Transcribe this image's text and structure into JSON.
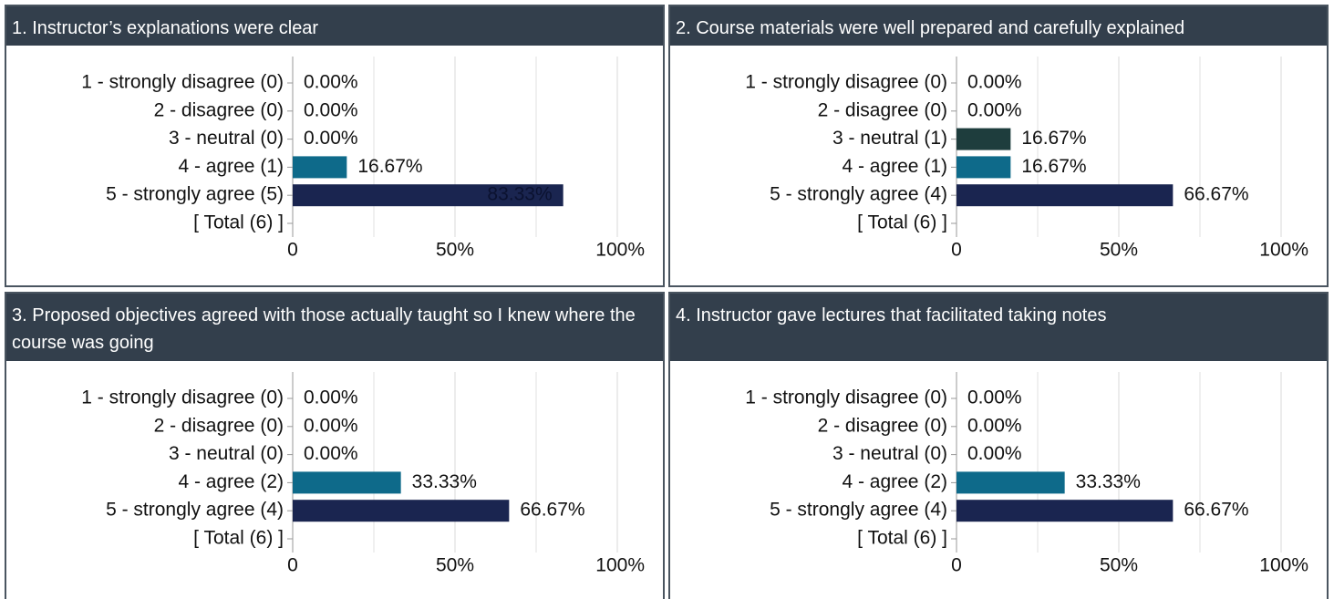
{
  "chart_data": [
    {
      "type": "bar",
      "title": "1. Instructor’s explanations were clear",
      "categories": [
        "1 - strongly disagree (0)",
        "2 - disagree (0)",
        "3 - neutral (0)",
        "4 - agree (1)",
        "5 - strongly agree (5)",
        "[ Total (6) ]"
      ],
      "values": [
        0,
        0,
        0,
        16.67,
        83.33,
        null
      ],
      "value_labels": [
        "0.00%",
        "0.00%",
        "0.00%",
        "16.67%",
        "83.33%",
        null
      ],
      "colors": [
        "#2a4d5c",
        "#2a4d5c",
        "#1e3d3d",
        "#0e6a8a",
        "#1a2550",
        null
      ],
      "xlim": [
        0,
        100
      ],
      "xticks": [
        0,
        {
          "value": 50,
          "label": "50%"
        },
        {
          "value": 100,
          "label": "100%"
        }
      ],
      "minor_xticks": [
        25,
        75
      ],
      "grid": true
    },
    {
      "type": "bar",
      "title": "2. Course materials were well prepared and carefully explained",
      "categories": [
        "1 - strongly disagree (0)",
        "2 - disagree (0)",
        "3 - neutral (1)",
        "4 - agree (1)",
        "5 - strongly agree (4)",
        "[ Total (6) ]"
      ],
      "values": [
        0,
        0,
        16.67,
        16.67,
        66.67,
        null
      ],
      "value_labels": [
        "0.00%",
        "0.00%",
        "16.67%",
        "16.67%",
        "66.67%",
        null
      ],
      "colors": [
        "#2a4d5c",
        "#2a4d5c",
        "#1e3d3d",
        "#0e6a8a",
        "#1a2550",
        null
      ],
      "xlim": [
        0,
        100
      ],
      "xticks": [
        0,
        {
          "value": 50,
          "label": "50%"
        },
        {
          "value": 100,
          "label": "100%"
        }
      ],
      "minor_xticks": [
        25,
        75
      ],
      "grid": true
    },
    {
      "type": "bar",
      "title": "3. Proposed objectives agreed with those actually taught so I knew where the course was going",
      "categories": [
        "1 - strongly disagree (0)",
        "2 - disagree (0)",
        "3 - neutral (0)",
        "4 - agree (2)",
        "5 - strongly agree (4)",
        "[ Total (6) ]"
      ],
      "values": [
        0,
        0,
        0,
        33.33,
        66.67,
        null
      ],
      "value_labels": [
        "0.00%",
        "0.00%",
        "0.00%",
        "33.33%",
        "66.67%",
        null
      ],
      "colors": [
        "#2a4d5c",
        "#2a4d5c",
        "#1e3d3d",
        "#0e6a8a",
        "#1a2550",
        null
      ],
      "xlim": [
        0,
        100
      ],
      "xticks": [
        0,
        {
          "value": 50,
          "label": "50%"
        },
        {
          "value": 100,
          "label": "100%"
        }
      ],
      "minor_xticks": [
        25,
        75
      ],
      "grid": true
    },
    {
      "type": "bar",
      "title": "4. Instructor gave lectures that facilitated taking notes",
      "categories": [
        "1 - strongly disagree (0)",
        "2 - disagree (0)",
        "3 - neutral (0)",
        "4 - agree (2)",
        "5 - strongly agree (4)",
        "[ Total (6) ]"
      ],
      "values": [
        0,
        0,
        0,
        33.33,
        66.67,
        null
      ],
      "value_labels": [
        "0.00%",
        "0.00%",
        "0.00%",
        "33.33%",
        "66.67%",
        null
      ],
      "colors": [
        "#2a4d5c",
        "#2a4d5c",
        "#1e3d3d",
        "#0e6a8a",
        "#1a2550",
        null
      ],
      "xlim": [
        0,
        100
      ],
      "xticks": [
        0,
        {
          "value": 50,
          "label": "50%"
        },
        {
          "value": 100,
          "label": "100%"
        }
      ],
      "minor_xticks": [
        25,
        75
      ],
      "grid": true
    }
  ]
}
